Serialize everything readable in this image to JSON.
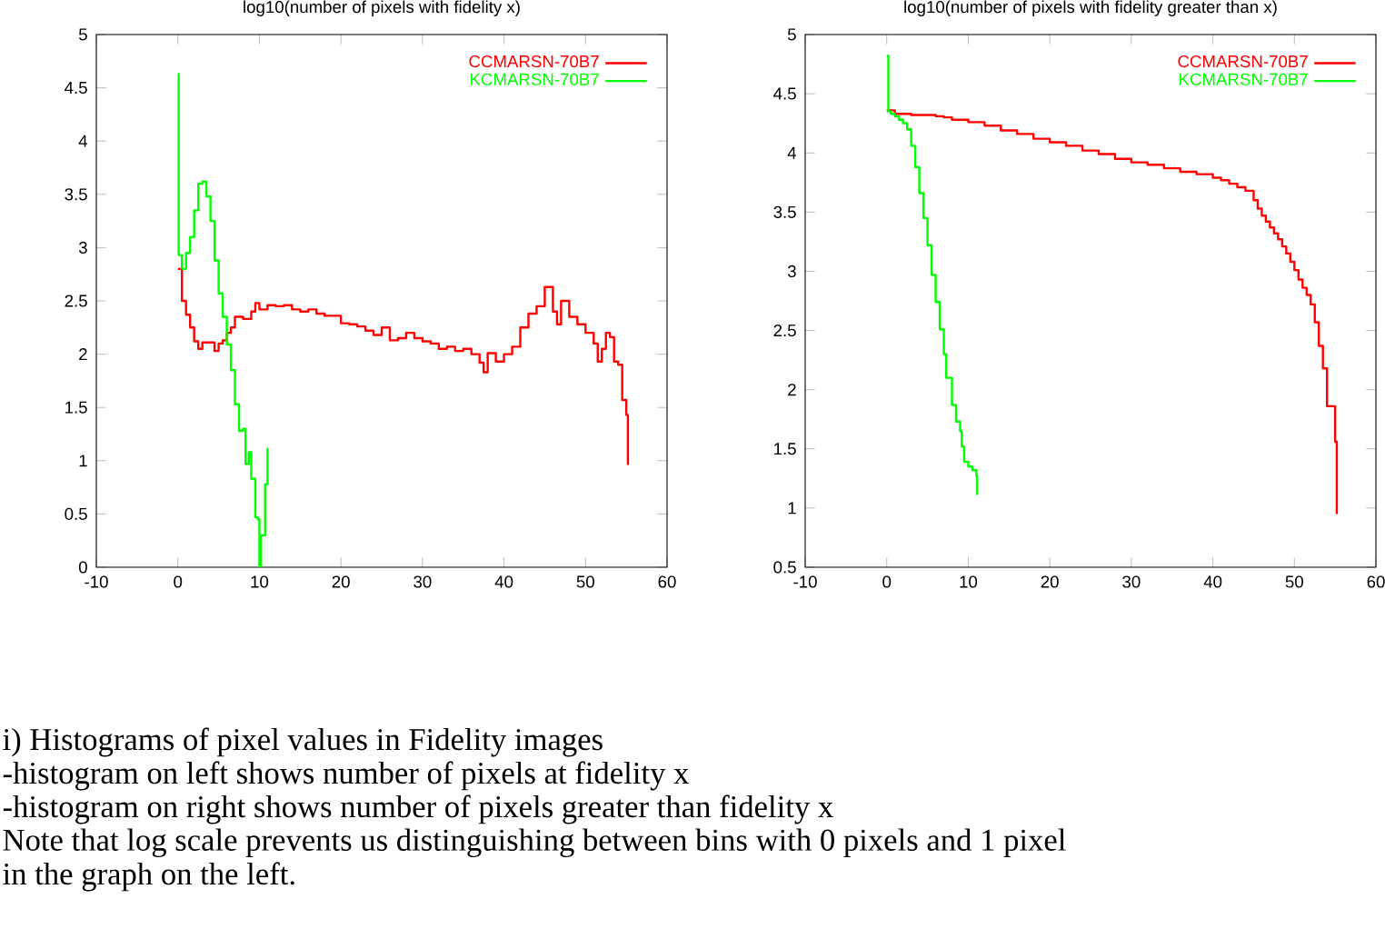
{
  "chart_data": [
    {
      "type": "step",
      "title": "log10(number of pixels with fidelity x)",
      "xlim": [
        -10,
        60
      ],
      "ylim": [
        0,
        5
      ],
      "xticks": [
        -10,
        0,
        10,
        20,
        30,
        40,
        50,
        60
      ],
      "yticks": [
        0,
        0.5,
        1,
        1.5,
        2,
        2.5,
        3,
        3.5,
        4,
        4.5,
        5
      ],
      "legend": "top right",
      "series": [
        {
          "name": "CCMARSN-70B7",
          "color": "#ff0000",
          "x": [
            0,
            0.5,
            1,
            1.5,
            2,
            2.5,
            3,
            4,
            4.5,
            5,
            5.5,
            6,
            6.5,
            7,
            8,
            9,
            9.5,
            10,
            11,
            12,
            13,
            14,
            15,
            16,
            17,
            18,
            19,
            20,
            21,
            22,
            23,
            24,
            25,
            26,
            27,
            28,
            29,
            30,
            31,
            32,
            33,
            34,
            35,
            36,
            37,
            37.5,
            38,
            39,
            40,
            41,
            42,
            43,
            44,
            45,
            46,
            46.5,
            47,
            48,
            49,
            50,
            51,
            51.5,
            52,
            52.5,
            53,
            53.5,
            54,
            54.5,
            55,
            55.2
          ],
          "values": [
            2.8,
            2.5,
            2.37,
            2.25,
            2.12,
            2.05,
            2.11,
            2.11,
            2.03,
            2.1,
            2.13,
            2.2,
            2.25,
            2.35,
            2.33,
            2.4,
            2.48,
            2.42,
            2.46,
            2.45,
            2.46,
            2.42,
            2.4,
            2.42,
            2.38,
            2.36,
            2.36,
            2.29,
            2.28,
            2.26,
            2.22,
            2.18,
            2.25,
            2.13,
            2.15,
            2.2,
            2.15,
            2.12,
            2.1,
            2.05,
            2.07,
            2.03,
            2.05,
            2.0,
            1.92,
            1.83,
            2.01,
            1.93,
            2.0,
            2.07,
            2.25,
            2.38,
            2.45,
            2.63,
            2.4,
            2.28,
            2.5,
            2.35,
            2.28,
            2.2,
            2.1,
            1.93,
            2.05,
            2.2,
            2.16,
            1.93,
            1.9,
            1.57,
            1.43,
            0.96
          ]
        },
        {
          "name": "KCMARSN-70B7",
          "color": "#00ff00",
          "x": [
            0,
            0.1,
            0.5,
            1,
            1.5,
            2,
            2.5,
            3,
            3.5,
            4,
            4.5,
            5,
            5.5,
            6,
            6.5,
            7,
            7.5,
            8,
            8.3,
            8.7,
            9,
            9.5,
            9.8,
            10,
            10.2,
            10.7,
            11
          ],
          "values": [
            4.63,
            2.93,
            2.8,
            2.95,
            3.1,
            3.35,
            3.6,
            3.62,
            3.48,
            3.25,
            2.88,
            2.57,
            2.35,
            2.09,
            1.85,
            1.53,
            1.28,
            1.3,
            0.97,
            1.08,
            0.83,
            0.47,
            0.45,
            0.0,
            0.3,
            0.78,
            1.12
          ]
        }
      ],
      "annotations": [
        "i) Histograms of pixel values in Fidelity images",
        "-histogram on left shows number of pixels at fidelity x",
        "-histogram on right shows number of pixels greater than fidelity x",
        "Note that log scale prevents us distinguishing between bins with 0 pixels and 1 pixel",
        "in the graph on the left."
      ]
    },
    {
      "type": "step",
      "title": "log10(number of pixels with fidelity greater than x)",
      "xlim": [
        -10,
        60
      ],
      "ylim": [
        0.5,
        5
      ],
      "xticks": [
        -10,
        0,
        10,
        20,
        30,
        40,
        50,
        60
      ],
      "yticks": [
        0.5,
        1,
        1.5,
        2,
        2.5,
        3,
        3.5,
        4,
        4.5,
        5
      ],
      "legend": "top right",
      "series": [
        {
          "name": "CCMARSN-70B7",
          "color": "#ff0000",
          "x": [
            0,
            1,
            3,
            6,
            7,
            8,
            10,
            12,
            14,
            16,
            18,
            20,
            22,
            24,
            26,
            28,
            30,
            32,
            34,
            36,
            38,
            40,
            41,
            42,
            43,
            44,
            45,
            45.5,
            46,
            46.5,
            47,
            47.5,
            48,
            48.5,
            49,
            49.5,
            50,
            50.5,
            51,
            51.5,
            52,
            52.5,
            53,
            53.5,
            54,
            55,
            55.2
          ],
          "values": [
            4.36,
            4.33,
            4.32,
            4.31,
            4.3,
            4.28,
            4.26,
            4.23,
            4.19,
            4.16,
            4.12,
            4.09,
            4.06,
            4.02,
            3.99,
            3.95,
            3.92,
            3.9,
            3.87,
            3.84,
            3.82,
            3.79,
            3.77,
            3.74,
            3.71,
            3.68,
            3.6,
            3.53,
            3.47,
            3.42,
            3.37,
            3.32,
            3.27,
            3.21,
            3.15,
            3.08,
            3.01,
            2.93,
            2.86,
            2.8,
            2.72,
            2.57,
            2.37,
            2.18,
            1.86,
            1.56,
            0.95
          ]
        },
        {
          "name": "KCMARSN-70B7",
          "color": "#00ff00",
          "x": [
            0,
            0.2,
            0.5,
            1,
            1.5,
            2,
            2.5,
            3,
            3.5,
            4,
            4.5,
            5,
            5.5,
            6,
            6.5,
            7,
            7.3,
            8,
            8.5,
            9,
            9.2,
            9.5,
            10,
            10.5,
            11,
            11.1
          ],
          "values": [
            4.82,
            4.35,
            4.33,
            4.31,
            4.28,
            4.25,
            4.2,
            4.06,
            3.88,
            3.66,
            3.45,
            3.22,
            2.97,
            2.74,
            2.51,
            2.3,
            2.1,
            1.87,
            1.73,
            1.65,
            1.52,
            1.39,
            1.35,
            1.32,
            1.27,
            1.11
          ]
        }
      ]
    }
  ]
}
